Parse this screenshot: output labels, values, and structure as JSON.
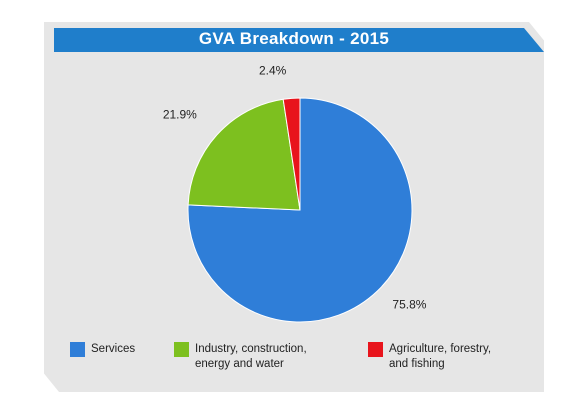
{
  "chart_data": {
    "type": "pie",
    "title": "GVA Breakdown - 2015",
    "categories": [
      "Services",
      "Industry, construction, energy and water",
      "Agriculture, forestry, and fishing"
    ],
    "legend_lines": [
      [
        "Services"
      ],
      [
        "Industry, construction,",
        "energy and water"
      ],
      [
        "Agriculture, forestry,",
        "and fishing"
      ]
    ],
    "values": [
      75.8,
      21.9,
      2.4
    ],
    "value_labels": [
      "75.8%",
      "21.9%",
      "2.4%"
    ],
    "colors": [
      "#2f7ed8",
      "#7dc01f",
      "#e8141c"
    ],
    "legend_position": "bottom"
  }
}
